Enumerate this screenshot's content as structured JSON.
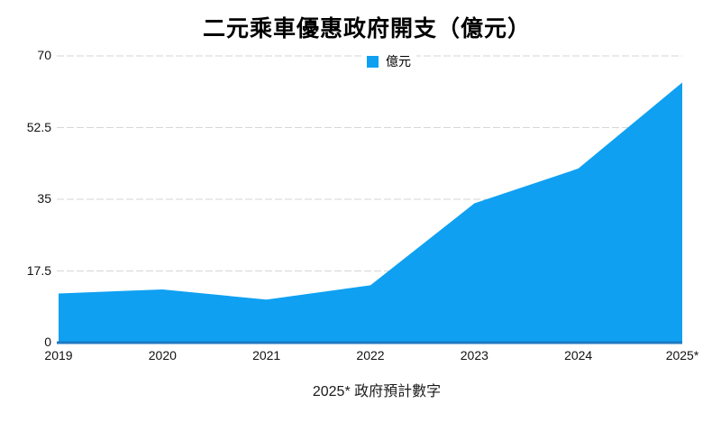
{
  "chart_data": {
    "type": "area",
    "title": "二元乘車優惠政府開支（億元）",
    "legend": {
      "label": "億元",
      "swatch_color": "#0FA0F2"
    },
    "categories": [
      "2019",
      "2020",
      "2021",
      "2022",
      "2023",
      "2024",
      "2025*"
    ],
    "series": [
      {
        "name": "億元",
        "values": [
          12,
          13,
          10.5,
          14,
          34,
          42.5,
          63.5
        ]
      }
    ],
    "xlabel": "",
    "ylabel": "",
    "ylim": [
      0,
      70
    ],
    "yticks": [
      0,
      17.5,
      35,
      52.5,
      70
    ],
    "grid": "horizontal-dashed",
    "legend_position": "top-center",
    "footnote": "2025* 政府預計數字",
    "colors": {
      "area_fill": "#0FA0F2",
      "axis_line": "#1E78C2",
      "gridline": "#D6D6D6",
      "text": "#000000"
    }
  }
}
